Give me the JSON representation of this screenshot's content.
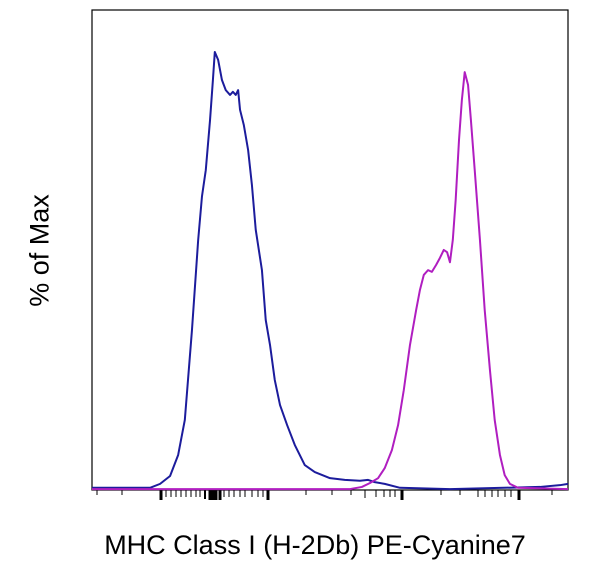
{
  "chart_data": {
    "type": "line",
    "title": "",
    "xlabel": "MHC Class I (H-2Db) PE-Cyanine7",
    "ylabel": "% of Max",
    "x_scale": "log (unlabeled)",
    "xlim": [
      0,
      1000
    ],
    "ylim": [
      0,
      110
    ],
    "grid": false,
    "legend": "none",
    "series": [
      {
        "color": "#1c1c9c",
        "x": [
          0,
          122,
          143,
          164,
          181,
          195,
          210,
          223,
          231,
          239,
          248,
          254,
          258,
          265,
          273,
          281,
          290,
          296,
          302,
          307,
          311,
          319,
          328,
          336,
          344,
          357,
          365,
          374,
          384,
          395,
          410,
          426,
          447,
          468,
          500,
          531,
          563,
          580,
          594,
          615,
          647,
          752,
          941,
          983,
          1000
        ],
        "y": [
          0.5,
          0.5,
          1.4,
          3.2,
          8,
          16,
          36.5,
          57,
          67,
          73,
          84.5,
          93.6,
          100,
          98.2,
          93.6,
          91.3,
          90.2,
          90.9,
          90.2,
          91.3,
          86.8,
          83.3,
          77.6,
          69.6,
          59.4,
          50.2,
          38.8,
          33.1,
          25.1,
          19.4,
          14.8,
          10.3,
          5.7,
          4.1,
          2.7,
          2.3,
          2.1,
          2.3,
          1.8,
          1.4,
          0.5,
          0.2,
          0.7,
          1.1,
          1.4
        ]
      },
      {
        "color": "#b01ec0",
        "x": [
          0,
          542,
          567,
          584,
          601,
          615,
          630,
          643,
          655,
          668,
          681,
          689,
          697,
          706,
          714,
          723,
          731,
          739,
          746,
          752,
          758,
          764,
          771,
          777,
          783,
          790,
          796,
          804,
          815,
          825,
          836,
          846,
          857,
          867,
          878,
          895,
          1000
        ],
        "y": [
          0.2,
          0.2,
          0.7,
          1.6,
          2.7,
          5,
          9.1,
          14.8,
          22.8,
          33.1,
          41.1,
          45.7,
          49.1,
          50.2,
          49.8,
          51.4,
          53,
          54.8,
          54.3,
          52,
          57.1,
          66.2,
          79.9,
          89,
          95.4,
          92.5,
          84.5,
          73.1,
          57.1,
          41.1,
          27.4,
          16,
          8,
          3.4,
          1.4,
          0.5,
          0.2
        ]
      }
    ]
  }
}
